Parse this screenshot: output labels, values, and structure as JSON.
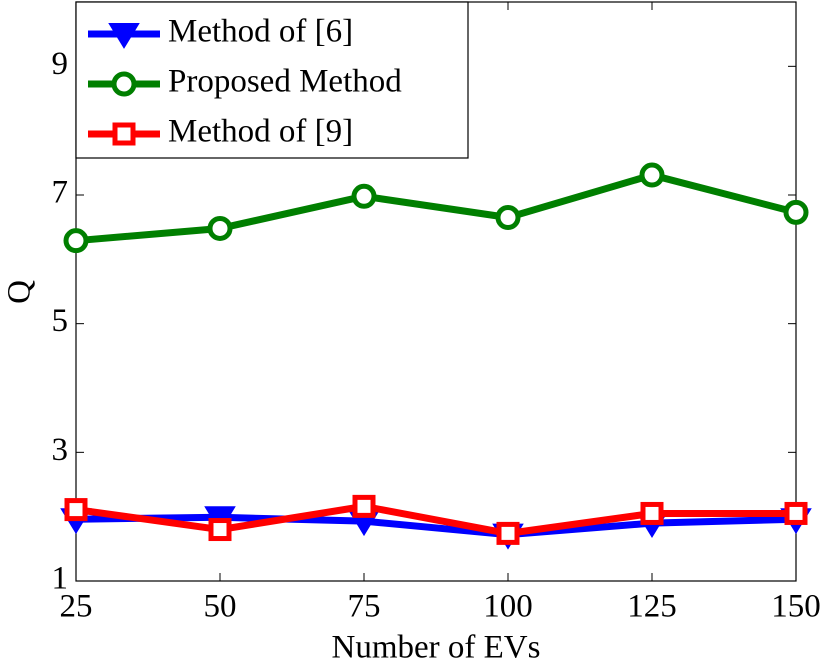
{
  "chart_data": {
    "type": "line",
    "x_label": "Number of EVs",
    "y_label": "Q",
    "x": [
      25,
      50,
      75,
      100,
      125,
      150
    ],
    "series": [
      {
        "name": "Method of [6]",
        "color": "#0000ff",
        "marker": "triangle-down",
        "values": [
          1.96,
          1.99,
          1.93,
          1.72,
          1.9,
          1.96
        ]
      },
      {
        "name": "Proposed Method",
        "color": "#007f00",
        "marker": "circle",
        "values": [
          6.29,
          6.48,
          6.98,
          6.65,
          7.31,
          6.73
        ]
      },
      {
        "name": "Method of [9]",
        "color": "#ff0000",
        "marker": "square",
        "values": [
          2.11,
          1.8,
          2.16,
          1.74,
          2.05,
          2.05
        ]
      }
    ],
    "xlim": [
      25,
      150
    ],
    "xticks": [
      25,
      50,
      75,
      100,
      125,
      150
    ],
    "ylim": [
      1,
      10
    ],
    "yticks": [
      1,
      3,
      5,
      7,
      9
    ],
    "legend": "upper-left"
  }
}
